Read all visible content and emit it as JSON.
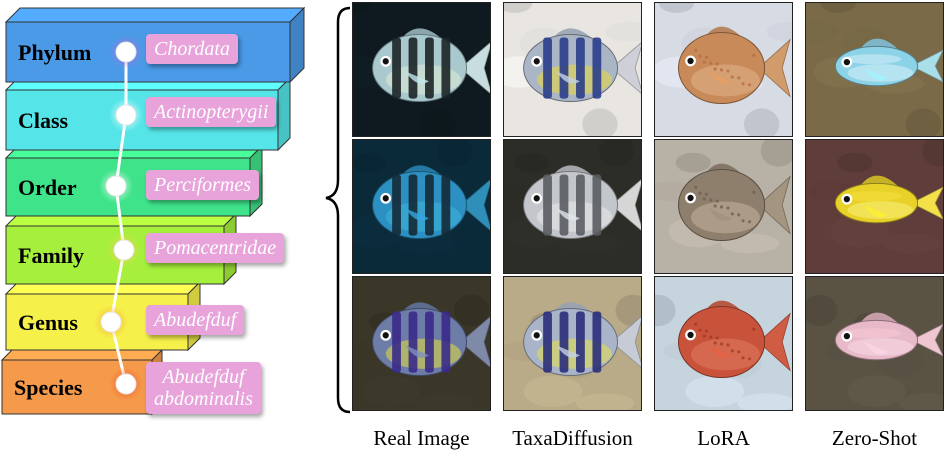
{
  "taxonomy": {
    "levels": [
      {
        "rank": "Phylum",
        "taxon_lines": [
          "Chordata"
        ],
        "color": "#4a9ae8",
        "node_glow": "#b56ed8"
      },
      {
        "rank": "Class",
        "taxon_lines": [
          "Actinopterygii"
        ],
        "color": "#55e5e8",
        "node_glow": "#ffffff"
      },
      {
        "rank": "Order",
        "taxon_lines": [
          "Perciformes"
        ],
        "color": "#3fe38a",
        "node_glow": "#ffffff"
      },
      {
        "rank": "Family",
        "taxon_lines": [
          "Pomacentridae"
        ],
        "color": "#a6ef3c",
        "node_glow": "#f5d25a"
      },
      {
        "rank": "Genus",
        "taxon_lines": [
          "Abudefduf"
        ],
        "color": "#f6f04a",
        "node_glow": "#f5a83a"
      },
      {
        "rank": "Species",
        "taxon_lines": [
          "Abudefduf",
          "abdominalis"
        ],
        "color": "#f59a4a",
        "node_glow": "#f55a2a"
      }
    ],
    "tag_color": "#e7a3da"
  },
  "columns": [
    {
      "label": "Real Image"
    },
    {
      "label": "TaxaDiffusion"
    },
    {
      "label": "LoRA"
    },
    {
      "label": "Zero-Shot"
    }
  ],
  "rows": 3,
  "images": [
    [
      {
        "kind": "sergeant",
        "bg": "#0e1a20",
        "body": "#a9c9cf",
        "stripe": "#1b2426",
        "tail": "#c7dde0",
        "belly": "#dfe9d4"
      },
      {
        "kind": "sergeant",
        "bg": "#e9e6e2",
        "body": "#aab6c6",
        "stripe": "#2a3d8a",
        "tail": "#cfcfd8",
        "belly": "#e9d83c"
      },
      {
        "kind": "cardinal",
        "bg": "#d7dbe4",
        "body": "#c98a5a",
        "stripe": "#b86b43",
        "tail": "#d29b6b",
        "belly": "#e0b28c"
      },
      {
        "kind": "reef",
        "bg": "#7a6a48",
        "body": "#8dd3e8",
        "stripe": "#ffffff",
        "tail": "#a9dfe9",
        "belly": "#d9f1f5"
      }
    ],
    [
      {
        "kind": "sergeant",
        "bg": "#0a2a3a",
        "body": "#2d90c2",
        "stripe": "#142a36",
        "tail": "#2f8fb8",
        "belly": "#3fb4dd"
      },
      {
        "kind": "sergeant",
        "bg": "#2d2d28",
        "body": "#c3c7cc",
        "stripe": "#5a5c60",
        "tail": "#d6d6d6",
        "belly": "#e8e8e8"
      },
      {
        "kind": "cardinal",
        "bg": "#b8b1a5",
        "body": "#8e7e6c",
        "stripe": "#6f6252",
        "tail": "#a49580",
        "belly": "#c2b39e"
      },
      {
        "kind": "reef",
        "bg": "#5f3d3a",
        "body": "#e8d22a",
        "stripe": "#ffe94a",
        "tail": "#f4e14a",
        "belly": "#f7ee7a"
      }
    ],
    [
      {
        "kind": "sergeant",
        "bg": "#3a3628",
        "body": "#6d7da8",
        "stripe": "#3a2a8a",
        "tail": "#7f8aa9",
        "belly": "#e2de3a"
      },
      {
        "kind": "sergeant",
        "bg": "#b9aa88",
        "body": "#a9b4c8",
        "stripe": "#2a2f7a",
        "tail": "#c7cbd6",
        "belly": "#e3e048"
      },
      {
        "kind": "cardinal",
        "bg": "#c6d4de",
        "body": "#c8533a",
        "stripe": "#a33b26",
        "tail": "#d05c43",
        "belly": "#e07c60"
      },
      {
        "kind": "reef",
        "bg": "#5a5344",
        "body": "#e8b9c8",
        "stripe": "#ffd3df",
        "tail": "#efc6d2",
        "belly": "#f5dde5"
      }
    ]
  ]
}
